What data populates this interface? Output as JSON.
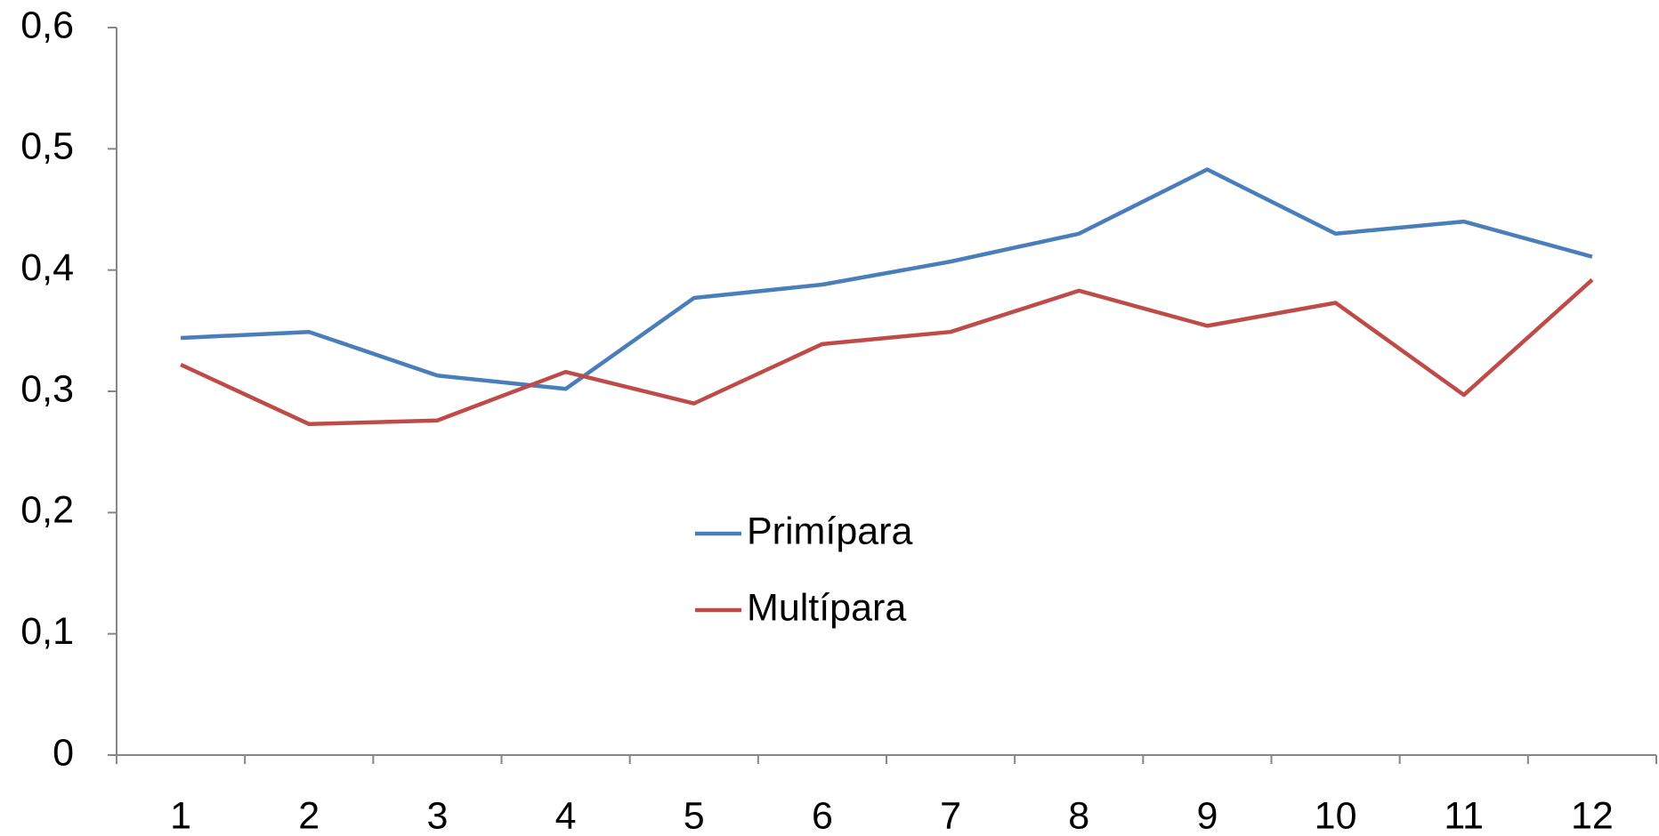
{
  "chart_data": {
    "type": "line",
    "categories": [
      "1",
      "2",
      "3",
      "4",
      "5",
      "6",
      "7",
      "8",
      "9",
      "10",
      "11",
      "12"
    ],
    "series": [
      {
        "name": "Primípara",
        "color": "#4a7ebb",
        "values": [
          0.344,
          0.349,
          0.313,
          0.302,
          0.377,
          0.388,
          0.407,
          0.43,
          0.483,
          0.43,
          0.44,
          0.411
        ]
      },
      {
        "name": "Multípara",
        "color": "#be4b48",
        "values": [
          0.322,
          0.273,
          0.276,
          0.316,
          0.29,
          0.339,
          0.349,
          0.383,
          0.354,
          0.373,
          0.297,
          0.392
        ]
      }
    ],
    "ylim": [
      0,
      0.6
    ],
    "yticks": [
      0,
      {
        "value": 0.1,
        "label": "0,1"
      },
      {
        "value": 0.2,
        "label": "0,2"
      },
      {
        "value": 0.3,
        "label": "0,3"
      },
      {
        "value": 0.4,
        "label": "0,4"
      },
      {
        "value": 0.5,
        "label": "0,5"
      },
      {
        "value": 0.6,
        "label": "0,6"
      }
    ],
    "grid": false
  }
}
